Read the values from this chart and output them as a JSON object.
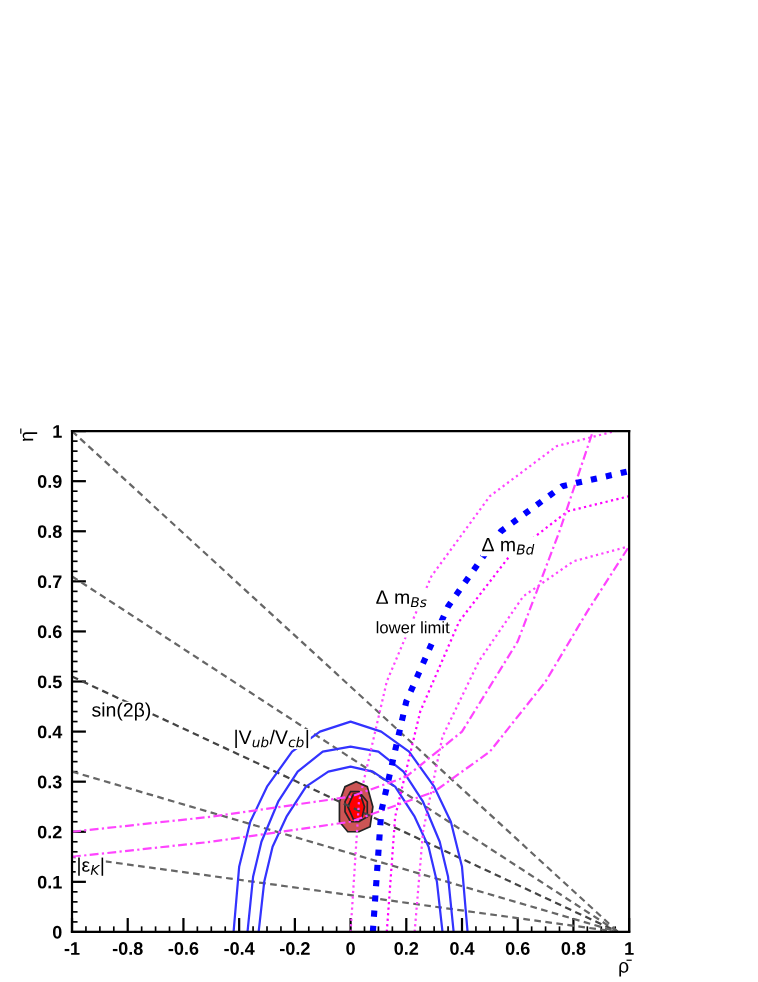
{
  "chart_data": {
    "type": "line",
    "xlabel": "ρ̄",
    "ylabel": "η̄",
    "xlim": [
      -1,
      1
    ],
    "ylim": [
      0,
      1
    ],
    "xticks": [
      -1,
      -0.8,
      -0.6,
      -0.4,
      -0.2,
      0,
      0.2,
      0.4,
      0.6,
      0.8,
      1
    ],
    "yticks": [
      0,
      0.1,
      0.2,
      0.3,
      0.4,
      0.5,
      0.6,
      0.7,
      0.8,
      0.9,
      1
    ],
    "grid": false,
    "legend": false,
    "marker": "none",
    "series": [
      {
        "line_style": "dashed",
        "color": "#666666",
        "x": [
          -1,
          0.96
        ],
        "values": [
          1.0,
          0
        ]
      },
      {
        "line_style": "dashed",
        "color": "#666666",
        "x": [
          -1,
          0.96
        ],
        "values": [
          0.71,
          0
        ]
      },
      {
        "line_style": "dashed",
        "color": "#444444",
        "x": [
          -1,
          0.96
        ],
        "values": [
          0.51,
          0
        ]
      },
      {
        "line_style": "dashed",
        "color": "#666666",
        "x": [
          -1,
          0.96
        ],
        "values": [
          0.32,
          0
        ]
      },
      {
        "line_style": "dashed",
        "color": "#666666",
        "x": [
          -1,
          0.96
        ],
        "values": [
          0.15,
          0
        ]
      },
      {
        "line_style": "solid",
        "color": "#3333ff",
        "x": [
          -0.42,
          -0.4,
          -0.36,
          -0.3,
          -0.21,
          -0.11,
          0,
          0.11,
          0.21,
          0.3,
          0.36,
          0.4,
          0.42
        ],
        "values": [
          0,
          0.13,
          0.22,
          0.29,
          0.36,
          0.4,
          0.42,
          0.4,
          0.36,
          0.29,
          0.22,
          0.13,
          0
        ]
      },
      {
        "line_style": "solid",
        "color": "#3333ff",
        "x": [
          -0.37,
          -0.35,
          -0.32,
          -0.26,
          -0.19,
          -0.1,
          0,
          0.1,
          0.19,
          0.26,
          0.32,
          0.35,
          0.37
        ],
        "values": [
          0,
          0.11,
          0.18,
          0.26,
          0.32,
          0.36,
          0.37,
          0.36,
          0.32,
          0.26,
          0.18,
          0.11,
          0
        ]
      },
      {
        "line_style": "solid",
        "color": "#3333ff",
        "x": [
          -0.33,
          -0.31,
          -0.28,
          -0.23,
          -0.16,
          -0.08,
          0,
          0.08,
          0.16,
          0.23,
          0.28,
          0.31,
          0.33
        ],
        "values": [
          0,
          0.1,
          0.17,
          0.23,
          0.29,
          0.32,
          0.33,
          0.32,
          0.29,
          0.23,
          0.17,
          0.1,
          0
        ]
      },
      {
        "line_style": "dotted",
        "color": "#ff44ff",
        "x": [
          0,
          0.03,
          0.13,
          0.29,
          0.5,
          0.74,
          0.95
        ],
        "values": [
          0,
          0.26,
          0.5,
          0.71,
          0.87,
          0.97,
          1.0
        ]
      },
      {
        "line_style": "dotted",
        "color": "#ff00ff",
        "x": [
          0.13,
          0.16,
          0.25,
          0.39,
          0.57,
          0.78,
          1
        ],
        "values": [
          0,
          0.23,
          0.44,
          0.62,
          0.75,
          0.84,
          0.87
        ]
      },
      {
        "line_style": "dotted",
        "color": "#ff44ff",
        "x": [
          0.23,
          0.26,
          0.33,
          0.46,
          0.62,
          0.8,
          1
        ],
        "values": [
          0,
          0.2,
          0.39,
          0.54,
          0.67,
          0.74,
          0.77
        ]
      },
      {
        "line_style": "dashdot",
        "color": "#ff44ff",
        "x": [
          -1,
          -0.5,
          0,
          0.2,
          0.4,
          0.6,
          0.75,
          0.87
        ],
        "values": [
          0.2,
          0.23,
          0.27,
          0.31,
          0.4,
          0.58,
          0.8,
          1.0
        ]
      },
      {
        "line_style": "dashdot",
        "color": "#ff44ff",
        "x": [
          -1,
          -0.5,
          0,
          0.3,
          0.5,
          0.7,
          0.85,
          1
        ],
        "values": [
          0.15,
          0.18,
          0.22,
          0.28,
          0.36,
          0.5,
          0.64,
          0.77
        ]
      },
      {
        "line_style": "dotted",
        "color": "#0000ff",
        "x": [
          0.08,
          0.11,
          0.2,
          0.35,
          0.54,
          0.76,
          1
        ],
        "values": [
          0,
          0.24,
          0.46,
          0.65,
          0.8,
          0.89,
          0.92
        ]
      },
      {
        "type": "area",
        "color": "#cc5555",
        "x": [
          -0.04,
          -0.02,
          0.02,
          0.06,
          0.08,
          0.07,
          0.03,
          -0.01,
          -0.04,
          -0.04
        ],
        "values": [
          0.26,
          0.29,
          0.3,
          0.29,
          0.25,
          0.21,
          0.2,
          0.2,
          0.22,
          0.26
        ]
      },
      {
        "type": "area",
        "color": "#ee3333",
        "x": [
          -0.02,
          0,
          0.03,
          0.06,
          0.06,
          0.03,
          0,
          -0.02,
          -0.02
        ],
        "values": [
          0.26,
          0.28,
          0.28,
          0.26,
          0.23,
          0.22,
          0.22,
          0.24,
          0.26
        ]
      },
      {
        "type": "area",
        "color": "#ff0000",
        "x": [
          -0.01,
          0.01,
          0.035,
          0.05,
          0.04,
          0.01,
          -0.01
        ],
        "values": [
          0.25,
          0.275,
          0.275,
          0.25,
          0.225,
          0.225,
          0.25
        ]
      }
    ],
    "annotations": [
      "sin(2β)",
      "|V$_{ub}$/V$_{cb}$|",
      "|ε$_{K}$|",
      "Δ m$_{Bd}$",
      "Δ m$_{Bs}$",
      "lower limit"
    ]
  }
}
